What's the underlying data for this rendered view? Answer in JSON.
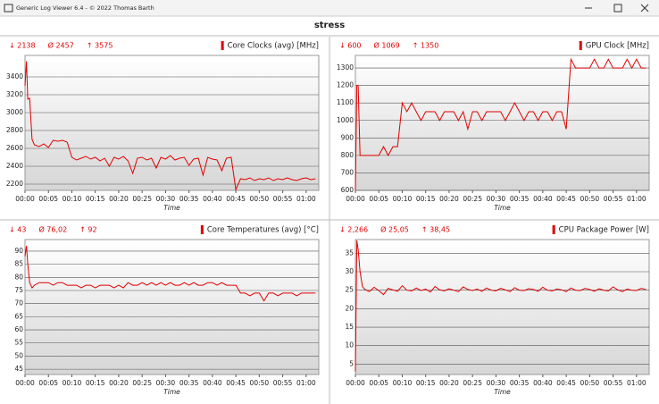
{
  "window": {
    "title": "Generic Log Viewer 6.4 - © 2022 Thomas Barth",
    "heading": "stress"
  },
  "chart_data": [
    {
      "type": "line",
      "title": "Core Clocks (avg) [MHz]",
      "stats": [
        "↓ 2138",
        "Ø 2457",
        "↑ 3575"
      ],
      "xlabel": "Time",
      "color": "#e00000",
      "grid": true,
      "x": [
        0,
        0.3,
        0.6,
        1,
        1.5,
        2,
        3,
        4,
        5,
        6,
        7,
        8,
        9,
        10,
        11,
        12,
        13,
        14,
        15,
        16,
        17,
        18,
        19,
        20,
        21,
        22,
        23,
        24,
        25,
        26,
        27,
        28,
        29,
        30,
        31,
        32,
        33,
        34,
        35,
        36,
        37,
        38,
        39,
        40,
        41,
        42,
        43,
        44,
        45,
        46,
        47,
        48,
        49,
        50,
        51,
        52,
        53,
        54,
        55,
        56,
        57,
        58,
        59,
        60,
        61,
        62
      ],
      "values": [
        3300,
        3575,
        3150,
        3160,
        2700,
        2640,
        2620,
        2650,
        2610,
        2690,
        2680,
        2690,
        2670,
        2500,
        2470,
        2490,
        2510,
        2480,
        2500,
        2460,
        2490,
        2400,
        2500,
        2480,
        2510,
        2460,
        2320,
        2490,
        2500,
        2470,
        2490,
        2380,
        2500,
        2480,
        2520,
        2470,
        2490,
        2500,
        2410,
        2480,
        2490,
        2300,
        2500,
        2480,
        2470,
        2350,
        2490,
        2500,
        2138,
        2260,
        2250,
        2270,
        2240,
        2260,
        2250,
        2270,
        2240,
        2260,
        2250,
        2270,
        2250,
        2240,
        2260,
        2270,
        2250,
        2260
      ],
      "xlim": [
        0,
        62.7
      ],
      "ylim": [
        2130,
        3640
      ],
      "yticks": [
        2200,
        2400,
        2600,
        2800,
        3000,
        3200,
        3400
      ],
      "xticks": [
        {
          "value": 0,
          "label": "00:00"
        },
        {
          "value": 5,
          "label": "00:05"
        },
        {
          "value": 10,
          "label": "00:10"
        },
        {
          "value": 15,
          "label": "00:15"
        },
        {
          "value": 20,
          "label": "00:20"
        },
        {
          "value": 25,
          "label": "00:25"
        },
        {
          "value": 30,
          "label": "00:30"
        },
        {
          "value": 35,
          "label": "00:35"
        },
        {
          "value": 40,
          "label": "00:40"
        },
        {
          "value": 45,
          "label": "00:45"
        },
        {
          "value": 50,
          "label": "00:50"
        },
        {
          "value": 55,
          "label": "00:55"
        },
        {
          "value": 60,
          "label": "01:00"
        }
      ]
    },
    {
      "type": "line",
      "title": "GPU Clock [MHz]",
      "stats": [
        "↓ 600",
        "Ø 1069",
        "↑ 1350"
      ],
      "xlabel": "Time",
      "color": "#e00000",
      "grid": true,
      "x": [
        0,
        0.3,
        0.6,
        1,
        1.5,
        2,
        3,
        4,
        5,
        6,
        7,
        8,
        9,
        10,
        11,
        12,
        13,
        14,
        15,
        16,
        17,
        18,
        19,
        20,
        21,
        22,
        23,
        24,
        25,
        26,
        27,
        28,
        29,
        30,
        31,
        32,
        33,
        34,
        35,
        36,
        37,
        38,
        39,
        40,
        41,
        42,
        43,
        44,
        45,
        46,
        47,
        48,
        49,
        50,
        51,
        52,
        53,
        54,
        55,
        56,
        57,
        58,
        59,
        60,
        61,
        62
      ],
      "values": [
        600,
        1200,
        1200,
        800,
        800,
        800,
        800,
        800,
        800,
        850,
        800,
        850,
        850,
        1100,
        1050,
        1100,
        1050,
        1000,
        1050,
        1050,
        1050,
        1000,
        1050,
        1050,
        1050,
        1000,
        1050,
        950,
        1050,
        1050,
        1000,
        1050,
        1050,
        1050,
        1050,
        1000,
        1050,
        1100,
        1050,
        1000,
        1050,
        1050,
        1000,
        1050,
        1050,
        1000,
        1050,
        1050,
        950,
        1350,
        1300,
        1300,
        1300,
        1300,
        1350,
        1300,
        1300,
        1350,
        1300,
        1300,
        1300,
        1350,
        1300,
        1350,
        1300,
        1300
      ],
      "xlim": [
        0,
        62.7
      ],
      "ylim": [
        600,
        1372
      ],
      "yticks": [
        600,
        700,
        800,
        900,
        1000,
        1100,
        1200,
        1300
      ],
      "xticks": [
        {
          "value": 0,
          "label": "00:00"
        },
        {
          "value": 5,
          "label": "00:05"
        },
        {
          "value": 10,
          "label": "00:10"
        },
        {
          "value": 15,
          "label": "00:15"
        },
        {
          "value": 20,
          "label": "00:20"
        },
        {
          "value": 25,
          "label": "00:25"
        },
        {
          "value": 30,
          "label": "00:30"
        },
        {
          "value": 35,
          "label": "00:35"
        },
        {
          "value": 40,
          "label": "00:40"
        },
        {
          "value": 45,
          "label": "00:45"
        },
        {
          "value": 50,
          "label": "00:50"
        },
        {
          "value": 55,
          "label": "00:55"
        },
        {
          "value": 60,
          "label": "01:00"
        }
      ]
    },
    {
      "type": "line",
      "title": "Core Temperatures (avg) [°C]",
      "stats": [
        "↓ 43",
        "Ø 76,02",
        "↑ 92"
      ],
      "xlabel": "Time",
      "color": "#e00000",
      "grid": true,
      "x": [
        0,
        0.3,
        0.6,
        1,
        1.5,
        2,
        3,
        4,
        5,
        6,
        7,
        8,
        9,
        10,
        11,
        12,
        13,
        14,
        15,
        16,
        17,
        18,
        19,
        20,
        21,
        22,
        23,
        24,
        25,
        26,
        27,
        28,
        29,
        30,
        31,
        32,
        33,
        34,
        35,
        36,
        37,
        38,
        39,
        40,
        41,
        42,
        43,
        44,
        45,
        46,
        47,
        48,
        49,
        50,
        51,
        52,
        53,
        54,
        55,
        56,
        57,
        58,
        59,
        60,
        61,
        62
      ],
      "values": [
        88,
        92,
        85,
        78,
        76,
        77,
        78,
        78,
        78,
        77,
        78,
        78,
        77,
        77,
        77,
        76,
        77,
        77,
        76,
        77,
        77,
        77,
        76,
        77,
        76,
        78,
        77,
        77,
        78,
        77,
        78,
        77,
        78,
        77,
        78,
        77,
        77,
        78,
        77,
        78,
        77,
        77,
        78,
        78,
        77,
        78,
        77,
        77,
        77,
        74,
        74,
        73,
        74,
        74,
        71,
        74,
        74,
        73,
        74,
        74,
        74,
        73,
        74,
        74,
        74,
        74
      ],
      "xlim": [
        0,
        62.7
      ],
      "ylim": [
        43,
        94.4
      ],
      "yticks": [
        45,
        50,
        55,
        60,
        65,
        70,
        75,
        80,
        85,
        90
      ],
      "xticks": [
        {
          "value": 0,
          "label": "00:00"
        },
        {
          "value": 5,
          "label": "00:05"
        },
        {
          "value": 10,
          "label": "00:10"
        },
        {
          "value": 15,
          "label": "00:15"
        },
        {
          "value": 20,
          "label": "00:20"
        },
        {
          "value": 25,
          "label": "00:25"
        },
        {
          "value": 30,
          "label": "00:30"
        },
        {
          "value": 35,
          "label": "00:35"
        },
        {
          "value": 40,
          "label": "00:40"
        },
        {
          "value": 45,
          "label": "00:45"
        },
        {
          "value": 50,
          "label": "00:50"
        },
        {
          "value": 55,
          "label": "00:55"
        },
        {
          "value": 60,
          "label": "01:00"
        }
      ]
    },
    {
      "type": "line",
      "title": "CPU Package Power [W]",
      "stats": [
        "↓ 2,266",
        "Ø 25,05",
        "↑ 38,45"
      ],
      "xlabel": "Time",
      "color": "#e00000",
      "grid": true,
      "x": [
        0,
        0.3,
        0.6,
        1,
        1.5,
        2,
        3,
        4,
        5,
        6,
        7,
        8,
        9,
        10,
        11,
        12,
        13,
        14,
        15,
        16,
        17,
        18,
        19,
        20,
        21,
        22,
        23,
        24,
        25,
        26,
        27,
        28,
        29,
        30,
        31,
        32,
        33,
        34,
        35,
        36,
        37,
        38,
        39,
        40,
        41,
        42,
        43,
        44,
        45,
        46,
        47,
        48,
        49,
        50,
        51,
        52,
        53,
        54,
        55,
        56,
        57,
        58,
        59,
        60,
        61,
        62
      ],
      "values": [
        3,
        38.45,
        36,
        30,
        26,
        25.2,
        24.6,
        25.8,
        24.9,
        23.8,
        25.5,
        25.1,
        24.7,
        26.2,
        25.0,
        24.8,
        25.6,
        24.9,
        25.3,
        24.5,
        26.0,
        25.1,
        24.8,
        25.4,
        25.0,
        24.6,
        25.9,
        25.2,
        24.9,
        25.3,
        24.7,
        25.6,
        25.0,
        24.8,
        25.5,
        25.1,
        24.6,
        25.7,
        25.0,
        24.9,
        25.4,
        25.2,
        24.7,
        25.8,
        25.0,
        24.8,
        25.3,
        25.1,
        24.6,
        25.6,
        25.0,
        24.9,
        25.5,
        25.2,
        24.7,
        25.4,
        25.0,
        24.8,
        25.9,
        25.1,
        24.6,
        25.3,
        25.0,
        24.9,
        25.5,
        25.2
      ],
      "xlim": [
        0,
        62.7
      ],
      "ylim": [
        2.2,
        38.7
      ],
      "yticks": [
        5,
        10,
        15,
        20,
        25,
        30,
        35
      ],
      "xticks": [
        {
          "value": 0,
          "label": "00:00"
        },
        {
          "value": 5,
          "label": "00:05"
        },
        {
          "value": 10,
          "label": "00:10"
        },
        {
          "value": 15,
          "label": "00:15"
        },
        {
          "value": 20,
          "label": "00:20"
        },
        {
          "value": 25,
          "label": "00:25"
        },
        {
          "value": 30,
          "label": "00:30"
        },
        {
          "value": 35,
          "label": "00:35"
        },
        {
          "value": 40,
          "label": "00:40"
        },
        {
          "value": 45,
          "label": "00:45"
        },
        {
          "value": 50,
          "label": "00:50"
        },
        {
          "value": 55,
          "label": "00:55"
        },
        {
          "value": 60,
          "label": "01:00"
        }
      ]
    }
  ]
}
